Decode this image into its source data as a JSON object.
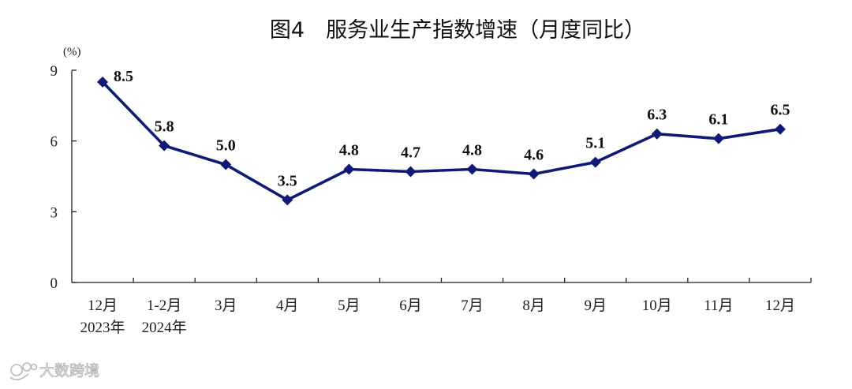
{
  "chart_data": {
    "type": "line",
    "title": "图4　服务业生产指数增速（月度同比）",
    "unit": "(%)",
    "ylim": [
      0,
      9
    ],
    "yticks": [
      0,
      3,
      6,
      9
    ],
    "grid": false,
    "categories": [
      "12月",
      "1-2月",
      "3月",
      "4月",
      "5月",
      "6月",
      "7月",
      "8月",
      "9月",
      "10月",
      "11月",
      "12月"
    ],
    "category_sublabels": [
      "2023年",
      "2024年",
      "",
      "",
      "",
      "",
      "",
      "",
      "",
      "",
      "",
      ""
    ],
    "series": [
      {
        "values": [
          8.5,
          5.8,
          5.0,
          3.5,
          4.8,
          4.7,
          4.8,
          4.6,
          5.1,
          6.3,
          6.1,
          6.5
        ],
        "labels": [
          "8.5",
          "5.8",
          "5.0",
          "3.5",
          "4.8",
          "4.7",
          "4.8",
          "4.6",
          "5.1",
          "6.3",
          "6.1",
          "6.5"
        ],
        "color": "#0f1a78"
      }
    ]
  },
  "watermark": {
    "text": "大数跨境",
    "icon": "brand-logo-icon"
  }
}
